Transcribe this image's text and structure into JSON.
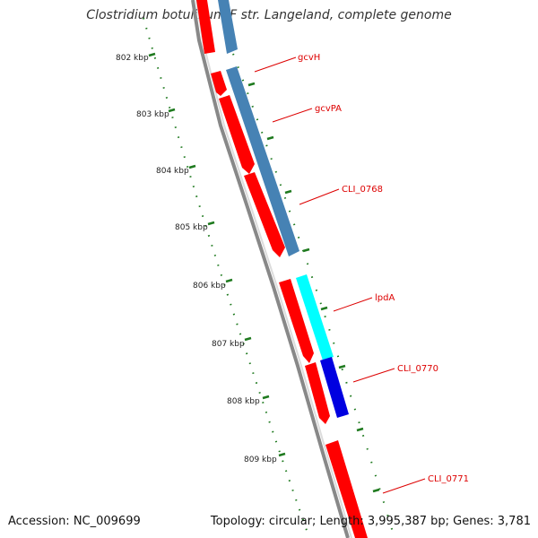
{
  "title": "Clostridium botulinum F str. Langeland, complete genome",
  "footer": {
    "accession": "Accession: NC_009699",
    "topology": "Topology: circular; Length: 3,995,387 bp; Genes: 3,781"
  },
  "colors": {
    "cds": "#ff0000",
    "gene_steelblue": "#4682b4",
    "gene_cyan": "#00ffff",
    "gene_blue": "#0000e0",
    "backbone": "#808080",
    "ticks": "#1f7a1f",
    "label": "#dd0000"
  },
  "kbp_ticks": [
    "802 kbp",
    "803 kbp",
    "804 kbp",
    "805 kbp",
    "806 kbp",
    "807 kbp",
    "808 kbp",
    "809 kbp"
  ],
  "gene_labels": [
    "gcvH",
    "gcvPA",
    "CLI_0768",
    "lpdA",
    "CLI_0770",
    "CLI_0771"
  ]
}
